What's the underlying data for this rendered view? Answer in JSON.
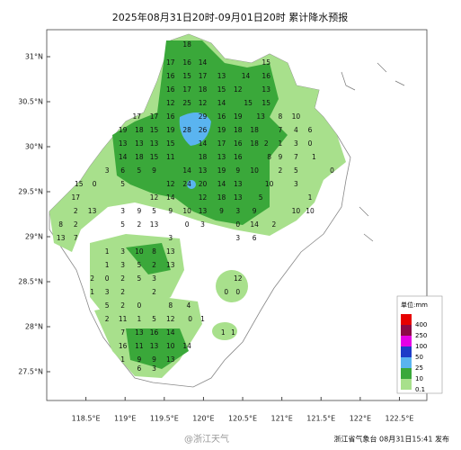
{
  "chart_data": {
    "type": "map",
    "title": "2025年08月31日20时-09月01日20时 累计降水预报",
    "xlim": [
      118,
      122.85
    ],
    "ylim": [
      27.18,
      31.3
    ],
    "xticks": [
      {
        "value": 118.5,
        "label": "118.5°E"
      },
      {
        "value": 119,
        "label": "119°E"
      },
      {
        "value": 119.5,
        "label": "119.5°E"
      },
      {
        "value": 120,
        "label": "120°E"
      },
      {
        "value": 120.5,
        "label": "120.5°E"
      },
      {
        "value": 121,
        "label": "121°E"
      },
      {
        "value": 121.5,
        "label": "121.5°E"
      },
      {
        "value": 122,
        "label": "122°E"
      },
      {
        "value": 122.5,
        "label": "122.5°E"
      }
    ],
    "yticks": [
      {
        "value": 27.5,
        "label": "27.5°N"
      },
      {
        "value": 28,
        "label": "28°N"
      },
      {
        "value": 28.5,
        "label": "28.5°N"
      },
      {
        "value": 29,
        "label": "29°N"
      },
      {
        "value": 29.5,
        "label": "29.5°N"
      },
      {
        "value": 30,
        "label": "30°N"
      },
      {
        "value": 30.5,
        "label": "30.5°N"
      },
      {
        "value": 31,
        "label": "31°N"
      }
    ],
    "stations": [
      {
        "lat": 31.13,
        "lon": [
          119.79
        ],
        "values": [
          18
        ]
      },
      {
        "lat": 30.93,
        "lon": [
          119.58,
          119.79,
          119.99,
          120.8
        ],
        "values": [
          17,
          16,
          14,
          15
        ]
      },
      {
        "lat": 30.78,
        "lon": [
          119.58,
          119.79,
          119.99,
          120.23,
          120.54,
          120.8
        ],
        "values": [
          16,
          15,
          17,
          13,
          14,
          16
        ]
      },
      {
        "lat": 30.63,
        "lon": [
          119.58,
          119.79,
          119.99,
          120.23,
          120.44,
          120.8
        ],
        "values": [
          16,
          17,
          18,
          15,
          12,
          13
        ]
      },
      {
        "lat": 30.48,
        "lon": [
          119.58,
          119.79,
          119.99,
          120.23,
          120.57,
          120.8
        ],
        "values": [
          12,
          25,
          12,
          14,
          15,
          15
        ]
      },
      {
        "lat": 30.33,
        "lon": [
          119.15,
          119.37,
          119.58,
          119.99,
          120.23,
          120.44,
          120.73,
          120.98,
          121.18
        ],
        "values": [
          17,
          17,
          16,
          29,
          16,
          19,
          13,
          8,
          10
        ]
      },
      {
        "lat": 30.18,
        "lon": [
          118.97,
          119.18,
          119.37,
          119.58,
          119.79,
          119.99,
          120.23,
          120.44,
          120.65,
          120.98,
          121.18,
          121.36
        ],
        "values": [
          19,
          18,
          15,
          19,
          28,
          26,
          19,
          18,
          18,
          7,
          4,
          6
        ]
      },
      {
        "lat": 30.03,
        "lon": [
          118.97,
          119.18,
          119.37,
          119.58,
          119.99,
          120.23,
          120.44,
          120.65,
          120.8,
          120.98,
          121.18,
          121.36
        ],
        "values": [
          13,
          13,
          13,
          15,
          14,
          17,
          16,
          18,
          2,
          1,
          3,
          0
        ]
      },
      {
        "lat": 29.88,
        "lon": [
          118.97,
          119.18,
          119.37,
          119.58,
          119.99,
          120.23,
          120.44,
          120.84,
          120.98,
          121.18,
          121.41
        ],
        "values": [
          14,
          18,
          15,
          11,
          18,
          13,
          16,
          8,
          9,
          7,
          1
        ]
      },
      {
        "lat": 29.73,
        "lon": [
          118.77,
          118.97,
          119.18,
          119.37,
          119.79,
          119.99,
          120.23,
          120.44,
          120.65,
          120.98,
          121.18,
          121.64
        ],
        "values": [
          3,
          6,
          5,
          9,
          14,
          13,
          19,
          9,
          10,
          2,
          5,
          0
        ]
      },
      {
        "lat": 29.58,
        "lon": [
          118.41,
          118.61,
          118.97,
          119.58,
          119.79,
          119.99,
          120.23,
          120.44,
          120.84,
          121.18
        ],
        "values": [
          15,
          0,
          5,
          12,
          24,
          20,
          14,
          13,
          10,
          3
        ]
      },
      {
        "lat": 29.43,
        "lon": [
          118.37,
          119.37,
          119.58,
          119.99,
          120.23,
          120.44,
          120.73,
          121.36
        ],
        "values": [
          17,
          12,
          14,
          12,
          18,
          13,
          5,
          1
        ]
      },
      {
        "lat": 29.28,
        "lon": [
          118.37,
          118.58,
          118.97,
          119.18,
          119.37,
          119.58,
          119.79,
          119.99,
          120.23,
          120.44,
          120.65,
          121.18,
          121.36
        ],
        "values": [
          2,
          13,
          3,
          9,
          5,
          9,
          10,
          13,
          9,
          3,
          9,
          10,
          10
        ]
      },
      {
        "lat": 29.13,
        "lon": [
          118.18,
          118.37,
          118.97,
          119.18,
          119.37,
          119.79,
          119.99,
          120.44,
          120.65,
          120.9
        ],
        "values": [
          8,
          2,
          5,
          2,
          13,
          0,
          3,
          0,
          14,
          2
        ]
      },
      {
        "lat": 28.98,
        "lon": [
          118.18,
          118.37,
          119.58,
          120.44,
          120.65
        ],
        "values": [
          13,
          7,
          3,
          3,
          6
        ]
      },
      {
        "lat": 28.83,
        "lon": [
          118.77,
          118.97,
          119.18,
          119.37,
          119.58
        ],
        "values": [
          1,
          3,
          10,
          8,
          13
        ]
      },
      {
        "lat": 28.68,
        "lon": [
          118.77,
          118.97,
          119.18,
          119.37,
          119.58
        ],
        "values": [
          1,
          3,
          5,
          2,
          13
        ]
      },
      {
        "lat": 28.53,
        "lon": [
          118.58,
          118.77,
          118.97,
          119.18,
          119.37,
          120.44
        ],
        "values": [
          2,
          0,
          2,
          5,
          3,
          12
        ]
      },
      {
        "lat": 28.38,
        "lon": [
          118.58,
          118.77,
          118.97,
          119.37,
          120.29,
          120.44
        ],
        "values": [
          1,
          3,
          2,
          2,
          0,
          0
        ]
      },
      {
        "lat": 28.23,
        "lon": [
          118.77,
          118.97,
          119.18,
          119.58,
          119.81
        ],
        "values": [
          5,
          2,
          0,
          8,
          4
        ]
      },
      {
        "lat": 28.08,
        "lon": [
          118.77,
          118.97,
          119.18,
          119.37,
          119.58,
          119.83,
          119.99
        ],
        "values": [
          2,
          11,
          1,
          5,
          12,
          0,
          1
        ]
      },
      {
        "lat": 27.93,
        "lon": [
          118.97,
          119.18,
          119.37,
          119.58,
          120.25,
          120.38
        ],
        "values": [
          7,
          13,
          16,
          14,
          1,
          1
        ]
      },
      {
        "lat": 27.78,
        "lon": [
          118.97,
          119.18,
          119.37,
          119.58,
          119.79
        ],
        "values": [
          16,
          11,
          13,
          10,
          14
        ]
      },
      {
        "lat": 27.63,
        "lon": [
          118.97,
          119.18,
          119.37,
          119.58
        ],
        "values": [
          1,
          9,
          9,
          13
        ]
      },
      {
        "lat": 27.53,
        "lon": [
          119.18,
          119.37
        ],
        "values": [
          6,
          3
        ]
      }
    ],
    "legend": {
      "title": "单位:mm",
      "levels": [
        "400",
        "250",
        "100",
        "50",
        "25",
        "10",
        "0.1"
      ],
      "colors": [
        "#e60000",
        "#8c0a46",
        "#e600e6",
        "#1e3cc8",
        "#5ab4f0",
        "#3aa83a",
        "#a8e08c"
      ]
    },
    "footer": "浙江省气象台 08月31日15:41 发布",
    "watermark": "@浙江天气"
  }
}
